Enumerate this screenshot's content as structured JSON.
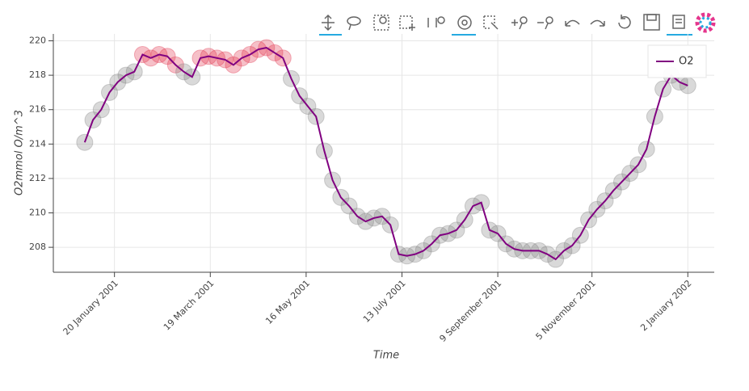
{
  "chart_data": {
    "type": "line",
    "x_label": "Time",
    "y_label": "O2mmol O/m^3",
    "x": [
      "2001-01-02",
      "2001-01-07",
      "2001-01-12",
      "2001-01-17",
      "2001-01-22",
      "2001-01-27",
      "2001-02-01",
      "2001-02-06",
      "2001-02-11",
      "2001-02-16",
      "2001-02-21",
      "2001-02-26",
      "2001-03-03",
      "2001-03-08",
      "2001-03-13",
      "2001-03-18",
      "2001-03-23",
      "2001-03-28",
      "2001-04-02",
      "2001-04-07",
      "2001-04-12",
      "2001-04-17",
      "2001-04-22",
      "2001-04-27",
      "2001-05-02",
      "2001-05-07",
      "2001-05-12",
      "2001-05-17",
      "2001-05-22",
      "2001-05-27",
      "2001-06-01",
      "2001-06-06",
      "2001-06-11",
      "2001-06-16",
      "2001-06-21",
      "2001-06-26",
      "2001-07-01",
      "2001-07-06",
      "2001-07-11",
      "2001-07-16",
      "2001-07-21",
      "2001-07-26",
      "2001-07-31",
      "2001-08-05",
      "2001-08-10",
      "2001-08-15",
      "2001-08-20",
      "2001-08-25",
      "2001-08-30",
      "2001-09-04",
      "2001-09-09",
      "2001-09-14",
      "2001-09-19",
      "2001-09-24",
      "2001-09-29",
      "2001-10-04",
      "2001-10-09",
      "2001-10-14",
      "2001-10-19",
      "2001-10-24",
      "2001-10-29",
      "2001-11-03",
      "2001-11-08",
      "2001-11-13",
      "2001-11-18",
      "2001-11-23",
      "2001-11-28",
      "2001-12-03",
      "2001-12-08",
      "2001-12-13",
      "2001-12-18",
      "2001-12-23",
      "2001-12-28",
      "2002-01-02"
    ],
    "series": [
      {
        "name": "O2",
        "color": "#800080",
        "marker_color": "#808080",
        "selected_color": "#e0304a",
        "values": [
          214.1,
          215.4,
          216.0,
          217.0,
          217.6,
          218.0,
          218.2,
          219.2,
          219.0,
          219.2,
          219.1,
          218.6,
          218.2,
          217.9,
          219.0,
          219.1,
          219.0,
          218.9,
          218.6,
          219.0,
          219.2,
          219.5,
          219.6,
          219.3,
          219.0,
          217.8,
          216.8,
          216.2,
          215.6,
          213.6,
          211.9,
          210.9,
          210.4,
          209.8,
          209.5,
          209.7,
          209.8,
          209.3,
          207.6,
          207.5,
          207.6,
          207.8,
          208.2,
          208.7,
          208.8,
          209.0,
          209.6,
          210.4,
          210.6,
          209.0,
          208.8,
          208.2,
          207.9,
          207.8,
          207.8,
          207.8,
          207.6,
          207.3,
          207.8,
          208.1,
          208.7,
          209.6,
          210.2,
          210.7,
          211.3,
          211.8,
          212.3,
          212.8,
          213.7,
          215.6,
          217.2,
          218.0,
          217.6,
          217.4
        ],
        "selected": [
          7,
          8,
          9,
          10,
          11,
          14,
          15,
          16,
          17,
          18,
          19,
          20,
          21,
          22,
          23,
          24
        ]
      }
    ],
    "xlim": [
      "2000-12-14",
      "2002-01-18"
    ],
    "xticks": [
      {
        "value": "2001-01-20",
        "label": "20 January 2001"
      },
      {
        "value": "2001-03-19",
        "label": "19 March 2001"
      },
      {
        "value": "2001-05-16",
        "label": "16 May 2001"
      },
      {
        "value": "2001-07-13",
        "label": "13 July 2001"
      },
      {
        "value": "2001-09-09",
        "label": "9 September 2001"
      },
      {
        "value": "2001-11-05",
        "label": "5 November 2001"
      },
      {
        "value": "2002-01-02",
        "label": "2 January 2002"
      }
    ],
    "ylim": [
      206.55,
      220.4
    ],
    "yticks": [
      208,
      210,
      212,
      214,
      216,
      218,
      220
    ],
    "grid": true,
    "legend": "top-right"
  }
}
